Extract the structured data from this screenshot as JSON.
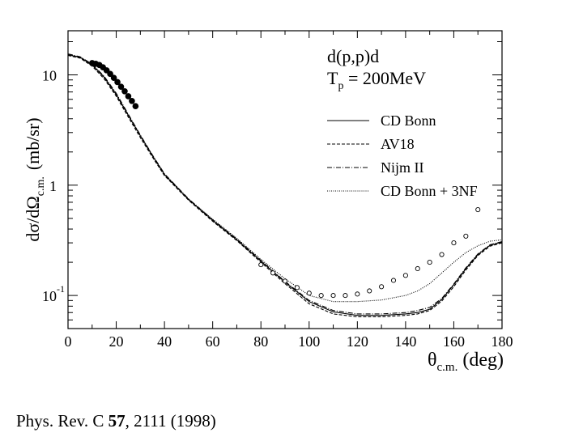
{
  "reference": {
    "prefix": "Phys. Rev. C ",
    "volume": "57",
    "suffix": ", 2111 (1998)"
  },
  "chart_data": {
    "type": "line",
    "title_line1": "d(p,p)d",
    "title_line2_main": "T",
    "title_line2_sub": "p",
    "title_line2_rest": " = 200MeV",
    "xlabel_main": "θ",
    "xlabel_sub": "c.m.",
    "xlabel_unit": "(deg)",
    "ylabel_main": "dσ/dΩ",
    "ylabel_sub": "c.m.",
    "ylabel_unit": "(mb/sr)",
    "xlim": [
      0,
      180
    ],
    "ylim_log10": [
      -1.3,
      1.4
    ],
    "x_ticks": [
      {
        "value": 0,
        "label": "0"
      },
      {
        "value": 20,
        "label": "20"
      },
      {
        "value": 40,
        "label": "40"
      },
      {
        "value": 60,
        "label": "60"
      },
      {
        "value": 80,
        "label": "80"
      },
      {
        "value": 100,
        "label": "100"
      },
      {
        "value": 120,
        "label": "120"
      },
      {
        "value": 140,
        "label": "140"
      },
      {
        "value": 160,
        "label": "160"
      },
      {
        "value": 180,
        "label": "180"
      }
    ],
    "y_ticks": [
      {
        "value": 10,
        "label": "10",
        "sup": ""
      },
      {
        "value": 1,
        "label": "1",
        "sup": ""
      },
      {
        "value": 0.1,
        "label": "10",
        "sup": "-1"
      }
    ],
    "series": [
      {
        "name": "CD Bonn",
        "dash": "",
        "x": [
          0,
          5,
          10,
          15,
          20,
          25,
          30,
          35,
          40,
          50,
          60,
          70,
          80,
          90,
          100,
          110,
          120,
          130,
          140,
          145,
          150,
          155,
          160,
          165,
          170,
          175,
          180
        ],
        "y": [
          15.2,
          14.4,
          12.3,
          9.5,
          6.6,
          4.3,
          2.8,
          1.85,
          1.25,
          0.74,
          0.48,
          0.32,
          0.205,
          0.132,
          0.088,
          0.071,
          0.066,
          0.066,
          0.068,
          0.07,
          0.075,
          0.092,
          0.125,
          0.175,
          0.235,
          0.285,
          0.305
        ]
      },
      {
        "name": "AV18",
        "dash": "4,2",
        "x": [
          0,
          5,
          10,
          15,
          20,
          25,
          30,
          35,
          40,
          50,
          60,
          70,
          80,
          90,
          100,
          110,
          120,
          130,
          140,
          145,
          150,
          155,
          160,
          165,
          170,
          175,
          180
        ],
        "y": [
          15.0,
          14.2,
          12.0,
          9.2,
          6.4,
          4.15,
          2.7,
          1.8,
          1.22,
          0.73,
          0.47,
          0.315,
          0.2,
          0.128,
          0.084,
          0.068,
          0.064,
          0.064,
          0.066,
          0.068,
          0.073,
          0.089,
          0.12,
          0.17,
          0.23,
          0.28,
          0.3
        ]
      },
      {
        "name": "Nijm II",
        "dash": "6,2,1,2",
        "x": [
          0,
          5,
          10,
          15,
          20,
          25,
          30,
          35,
          40,
          50,
          60,
          70,
          80,
          90,
          100,
          110,
          120,
          130,
          140,
          145,
          150,
          155,
          160,
          165,
          170,
          175,
          180
        ],
        "y": [
          15.5,
          14.6,
          12.5,
          9.7,
          6.8,
          4.4,
          2.85,
          1.88,
          1.27,
          0.75,
          0.485,
          0.325,
          0.208,
          0.134,
          0.09,
          0.073,
          0.068,
          0.068,
          0.07,
          0.073,
          0.078,
          0.094,
          0.127,
          0.178,
          0.238,
          0.288,
          0.308
        ]
      },
      {
        "name": "CD Bonn + 3NF",
        "dash": "1,1.5",
        "x": [
          0,
          5,
          10,
          15,
          20,
          25,
          30,
          35,
          40,
          50,
          60,
          70,
          80,
          90,
          100,
          110,
          120,
          130,
          140,
          145,
          150,
          155,
          160,
          165,
          170,
          175,
          180
        ],
        "y": [
          15.3,
          14.5,
          12.4,
          9.6,
          6.7,
          4.35,
          2.82,
          1.87,
          1.26,
          0.75,
          0.49,
          0.33,
          0.213,
          0.142,
          0.1,
          0.088,
          0.088,
          0.091,
          0.1,
          0.11,
          0.128,
          0.16,
          0.2,
          0.245,
          0.282,
          0.31,
          0.32
        ]
      }
    ],
    "data_filled": {
      "x": [
        10,
        11.5,
        13,
        14.5,
        16,
        17.5,
        19,
        20.5,
        22,
        23.5,
        25,
        26.5,
        28
      ],
      "y": [
        12.8,
        12.6,
        12.3,
        11.7,
        11.0,
        10.2,
        9.4,
        8.6,
        7.8,
        7.1,
        6.4,
        5.8,
        5.2
      ]
    },
    "data_open": {
      "x": [
        80,
        85,
        90,
        95,
        100,
        105,
        110,
        115,
        120,
        125,
        130,
        135,
        140,
        145,
        150,
        155,
        160,
        165,
        170
      ],
      "y": [
        0.19,
        0.16,
        0.135,
        0.118,
        0.105,
        0.1,
        0.1,
        0.1,
        0.103,
        0.11,
        0.12,
        0.137,
        0.152,
        0.175,
        0.2,
        0.235,
        0.3,
        0.345,
        0.6
      ]
    }
  }
}
